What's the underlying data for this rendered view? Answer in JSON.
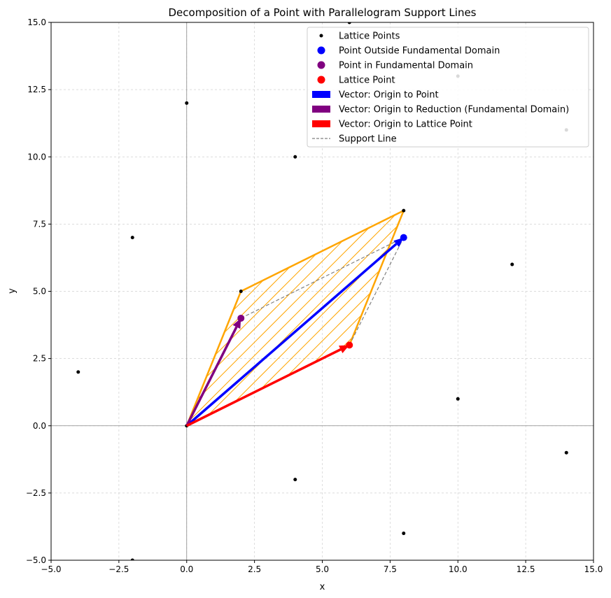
{
  "chart_data": {
    "type": "scatter",
    "title": "Decomposition of a Point with Parallelogram Support Lines",
    "xlabel": "x",
    "ylabel": "y",
    "xlim": [
      -5,
      15
    ],
    "ylim": [
      -5,
      15
    ],
    "grid": true,
    "legend_position": "top-right",
    "x_ticks": [
      -5.0,
      -2.5,
      0.0,
      2.5,
      5.0,
      7.5,
      10.0,
      12.5,
      15.0
    ],
    "y_ticks": [
      -5.0,
      -2.5,
      0.0,
      2.5,
      5.0,
      7.5,
      10.0,
      12.5,
      15.0
    ],
    "x_tick_labels": [
      "−5.0",
      "−2.5",
      "0.0",
      "2.5",
      "5.0",
      "7.5",
      "10.0",
      "12.5",
      "15.0"
    ],
    "y_tick_labels": [
      "−5.0",
      "−2.5",
      "0.0",
      "2.5",
      "5.0",
      "7.5",
      "10.0",
      "12.5",
      "15.0"
    ],
    "lattice_points": [
      [
        -4,
        2
      ],
      [
        -2,
        7
      ],
      [
        -2,
        -5
      ],
      [
        0,
        0
      ],
      [
        0,
        12
      ],
      [
        2,
        5
      ],
      [
        4,
        10
      ],
      [
        4,
        -2
      ],
      [
        6,
        15
      ],
      [
        6,
        3
      ],
      [
        8,
        8
      ],
      [
        8,
        -4
      ],
      [
        10,
        13
      ],
      [
        10,
        1
      ],
      [
        12,
        6
      ],
      [
        14,
        11
      ],
      [
        14,
        -1
      ]
    ],
    "parallelogram": [
      [
        0,
        0
      ],
      [
        2,
        5
      ],
      [
        8,
        8
      ],
      [
        6,
        3
      ]
    ],
    "point_outside": [
      8,
      7
    ],
    "point_in_domain": [
      2,
      4
    ],
    "lattice_point": [
      6,
      3
    ],
    "vectors": [
      {
        "label": "Vector: Origin to Point",
        "from": [
          0,
          0
        ],
        "to": [
          8,
          7
        ],
        "color": "#0000ff"
      },
      {
        "label": "Vector: Origin to Reduction (Fundamental Domain)",
        "from": [
          0,
          0
        ],
        "to": [
          2,
          4
        ],
        "color": "#800080"
      },
      {
        "label": "Vector: Origin to Lattice Point",
        "from": [
          0,
          0
        ],
        "to": [
          6,
          3
        ],
        "color": "#ff0000"
      }
    ],
    "support_lines": [
      [
        [
          2,
          4
        ],
        [
          8,
          7
        ]
      ],
      [
        [
          6,
          3
        ],
        [
          8,
          7
        ]
      ]
    ],
    "colors": {
      "lattice": "#000000",
      "outside": "#0000ff",
      "domain": "#800080",
      "lattice_point": "#ff0000",
      "parallelogram": "#ffa500",
      "support": "#808080"
    },
    "legend": [
      {
        "label": "Lattice Points",
        "marker": "small-dot",
        "color": "#000000"
      },
      {
        "label": "Point Outside Fundamental Domain",
        "marker": "dot",
        "color": "#0000ff"
      },
      {
        "label": "Point in Fundamental Domain",
        "marker": "dot",
        "color": "#800080"
      },
      {
        "label": "Lattice Point",
        "marker": "dot",
        "color": "#ff0000"
      },
      {
        "label": "Vector: Origin to Point",
        "marker": "rect",
        "color": "#0000ff"
      },
      {
        "label": "Vector: Origin to Reduction (Fundamental Domain)",
        "marker": "rect",
        "color": "#800080"
      },
      {
        "label": "Vector: Origin to Lattice Point",
        "marker": "rect",
        "color": "#ff0000"
      },
      {
        "label": "Support Line",
        "marker": "dash",
        "color": "#808080"
      }
    ]
  }
}
